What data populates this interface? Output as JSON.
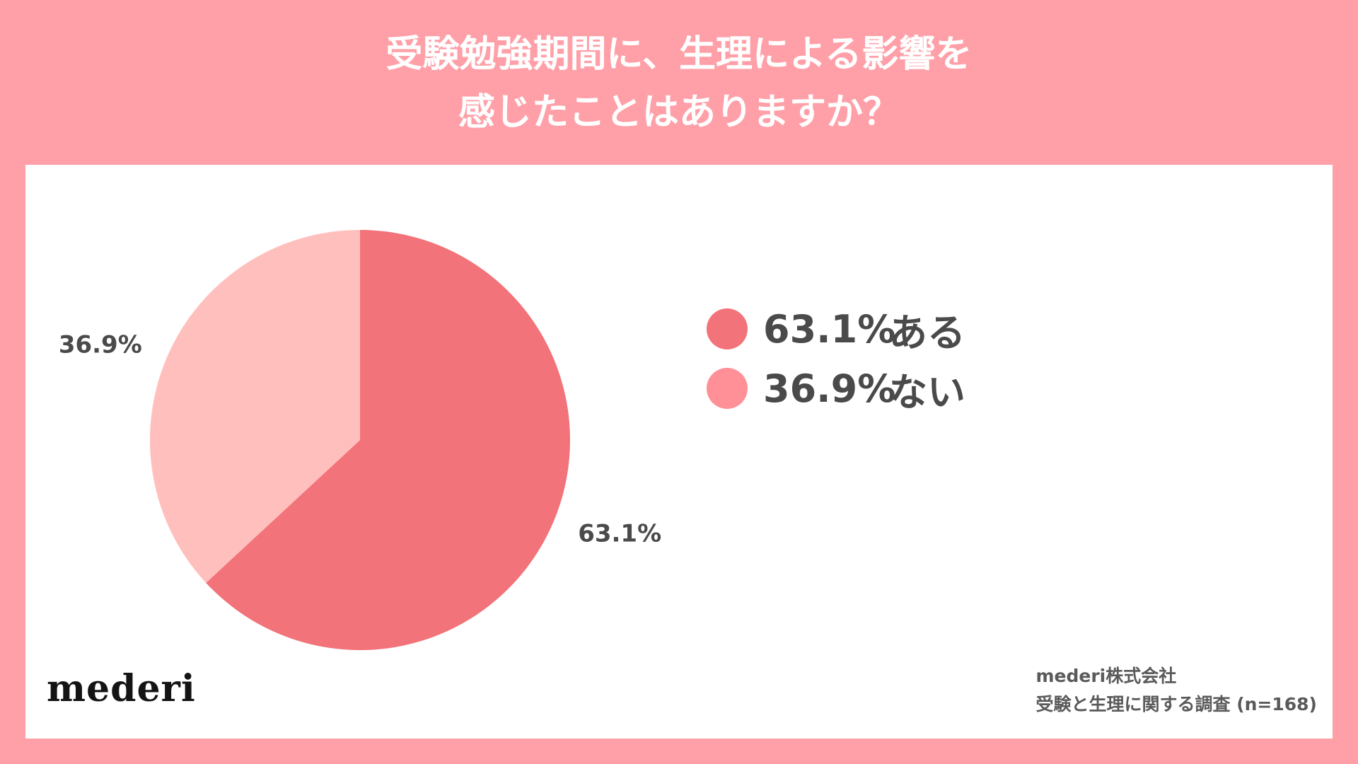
{
  "title": {
    "line1": "受験勉強期間に、生理による影響を",
    "line2": "感じたことはありますか？"
  },
  "colors": {
    "background": "#FFA0A8",
    "panel": "#FFFFFF",
    "slice_yes": "#F2737A",
    "slice_no": "#FFBFBD",
    "legend_no_dot": "#FF9097",
    "text": "#4A4A4A",
    "title_text": "#FFFFFF"
  },
  "chart_data": {
    "type": "pie",
    "slices": [
      {
        "label": "ある",
        "value": 63.1,
        "display": "63.1%",
        "color": "#F2737A"
      },
      {
        "label": "ない",
        "value": 36.9,
        "display": "36.9%",
        "color": "#FFBFBD"
      }
    ],
    "start_angle": "12 o'clock",
    "direction": "clockwise",
    "legend_position": "right"
  },
  "legend": [
    {
      "pct": "63.1%",
      "label": "ある",
      "color": "#F2737A"
    },
    {
      "pct": "36.9%",
      "label": "ない",
      "color": "#FF9097"
    }
  ],
  "brand": {
    "logo": "mederi"
  },
  "source": {
    "line1": "mederi株式会社",
    "line2": "受験と生理に関する調査 (n=168)"
  }
}
